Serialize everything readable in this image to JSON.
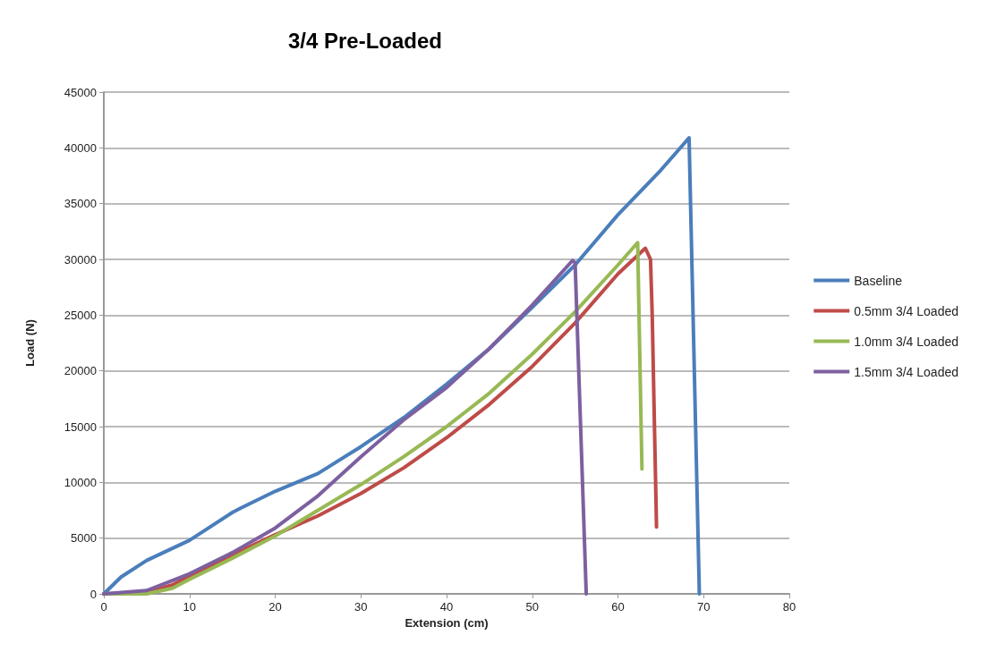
{
  "chart_data": {
    "type": "line",
    "title": "3/4 Pre-Loaded",
    "xlabel": "Extension (cm)",
    "ylabel": "Load (N)",
    "xlim": [
      0,
      80
    ],
    "xticks": [
      0,
      10,
      20,
      30,
      40,
      50,
      60,
      70,
      80
    ],
    "ylim": [
      0,
      45000
    ],
    "yticks": [
      0,
      5000,
      10000,
      15000,
      20000,
      25000,
      30000,
      35000,
      40000,
      45000
    ],
    "grid": "y",
    "legend": "right",
    "marker": "none",
    "series": [
      {
        "name": "Baseline",
        "color": "#4a7ebb",
        "x": [
          0,
          2,
          5,
          10,
          15,
          16,
          20,
          25,
          30,
          35,
          40,
          45,
          50,
          55,
          60,
          65,
          68.3,
          69.5
        ],
        "values": [
          0,
          1500,
          3000,
          4800,
          7300,
          7700,
          9200,
          10800,
          13200,
          15800,
          18800,
          22000,
          25700,
          29500,
          34000,
          38000,
          40900,
          0
        ]
      },
      {
        "name": "0.5mm 3/4 Loaded",
        "color": "#be4b48",
        "x": [
          0,
          5,
          8,
          10,
          15,
          20,
          25,
          30,
          35,
          40,
          45,
          50,
          55,
          60,
          62.5,
          63.2,
          63.8,
          64,
          64.5
        ],
        "values": [
          0,
          100,
          800,
          1600,
          3500,
          5300,
          7000,
          9000,
          11300,
          14000,
          17000,
          20400,
          24300,
          28700,
          30500,
          31000,
          30000,
          25000,
          6000
        ]
      },
      {
        "name": "1.0mm 3/4 Loaded",
        "color": "#98b954",
        "x": [
          0,
          5,
          8,
          10,
          15,
          20,
          25,
          30,
          35,
          40,
          45,
          50,
          55,
          60,
          62.3,
          62.8
        ],
        "values": [
          0,
          0,
          500,
          1300,
          3200,
          5200,
          7500,
          9800,
          12300,
          15000,
          18000,
          21500,
          25300,
          29500,
          31500,
          11200
        ]
      },
      {
        "name": "1.5mm 3/4 Loaded",
        "color": "#7d60a0",
        "x": [
          0,
          5,
          10,
          15,
          20,
          25,
          30,
          35,
          40,
          45,
          50,
          54.7,
          55,
          56.3
        ],
        "values": [
          0,
          300,
          1800,
          3700,
          5900,
          8800,
          12300,
          15600,
          18500,
          22000,
          25900,
          29900,
          29700,
          0
        ]
      }
    ]
  }
}
